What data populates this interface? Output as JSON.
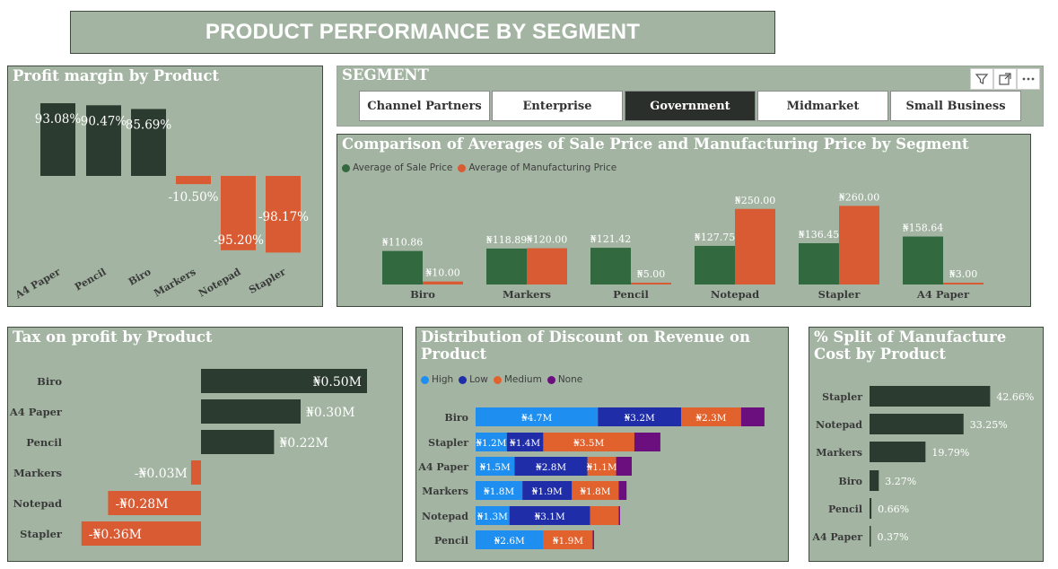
{
  "page_title": "PRODUCT PERFORMANCE BY SEGMENT",
  "colors": {
    "panel_bg": "#a3b5a2",
    "dark": "#2c3b2f",
    "orange": "#d95b34",
    "green": "#33693f",
    "high": "#1e8ff0",
    "low": "#1f2ea8",
    "medium": "#e2622e",
    "none": "#6b0f7f"
  },
  "segment_slicer": {
    "title": "SEGMENT",
    "options": [
      "Channel Partners",
      "Enterprise",
      "Government",
      "Midmarket",
      "Small Business"
    ],
    "selected": "Government",
    "icons": [
      "filter-icon",
      "focus-mode-icon",
      "more-options-icon"
    ]
  },
  "charts": {
    "profit_margin": {
      "title": "Profit margin by Product",
      "chart_data": {
        "type": "bar",
        "categories": [
          "A4 Paper",
          "Pencil",
          "Biro",
          "Markers",
          "Notepad",
          "Stapler"
        ],
        "values": [
          93.08,
          90.47,
          85.69,
          -10.5,
          -95.2,
          -98.17
        ],
        "labels": [
          "93.08%",
          "90.47%",
          "85.69%",
          "-10.50%",
          "-95.20%",
          "-98.17%"
        ]
      }
    },
    "averages": {
      "title": "Comparison of Averages of Sale Price and Manufacturing Price by Segment",
      "chart_data": {
        "type": "bar",
        "categories": [
          "Biro",
          "Markers",
          "Pencil",
          "Notepad",
          "Stapler",
          "A4 Paper"
        ],
        "series": [
          {
            "name": "Average of Sale Price",
            "values": [
              110.86,
              118.89,
              121.42,
              127.75,
              136.45,
              158.64
            ],
            "labels": [
              "₦110.86",
              "₦118.89",
              "₦121.42",
              "₦127.75",
              "₦136.45",
              "₦158.64"
            ]
          },
          {
            "name": "Average of Manufacturing Price",
            "values": [
              10.0,
              120.0,
              5.0,
              250.0,
              260.0,
              3.0
            ],
            "labels": [
              "₦10.00",
              "₦120.00",
              "₦5.00",
              "₦250.00",
              "₦260.00",
              "₦3.00"
            ]
          }
        ]
      }
    },
    "tax": {
      "title": "Tax on profit by Product",
      "chart_data": {
        "type": "bar",
        "categories": [
          "Biro",
          "A4 Paper",
          "Pencil",
          "Markers",
          "Notepad",
          "Stapler"
        ],
        "values": [
          0.5,
          0.3,
          0.22,
          -0.03,
          -0.28,
          -0.36
        ],
        "labels": [
          "₦0.50M",
          "₦0.30M",
          "₦0.22M",
          "-₦0.03M",
          "-₦0.28M",
          "-₦0.36M"
        ]
      }
    },
    "discount": {
      "title": "Distribution of Discount on Revenue on Product",
      "chart_data": {
        "type": "bar",
        "categories": [
          "Biro",
          "Stapler",
          "A4 Paper",
          "Markers",
          "Notepad",
          "Pencil"
        ],
        "series": [
          {
            "name": "High",
            "values": [
              4.7,
              1.2,
              1.5,
              1.8,
              1.3,
              2.6
            ],
            "labels": [
              "₦4.7M",
              "₦1.2M",
              "₦1.5M",
              "₦1.8M",
              "₦1.3M",
              "₦2.6M"
            ]
          },
          {
            "name": "Low",
            "values": [
              3.2,
              1.4,
              2.8,
              1.9,
              3.1,
              0.0
            ],
            "labels": [
              "₦3.2M",
              "₦1.4M",
              "₦2.8M",
              "₦1.9M",
              "₦3.1M",
              ""
            ]
          },
          {
            "name": "Medium",
            "values": [
              2.3,
              3.5,
              1.1,
              1.8,
              1.1,
              1.9
            ],
            "labels": [
              "₦2.3M",
              "₦3.5M",
              "₦1.1M",
              "₦1.8M",
              "",
              "₦1.9M"
            ]
          },
          {
            "name": "None",
            "values": [
              0.9,
              1.0,
              0.6,
              0.3,
              0.05,
              0.05
            ],
            "labels": [
              "",
              "",
              "",
              "",
              "",
              ""
            ]
          }
        ]
      }
    },
    "manufacture_split": {
      "title": "% Split of Manufacture Cost by Product",
      "chart_data": {
        "type": "bar",
        "categories": [
          "Stapler",
          "Notepad",
          "Markers",
          "Biro",
          "Pencil",
          "A4 Paper"
        ],
        "values": [
          42.66,
          33.25,
          19.79,
          3.27,
          0.66,
          0.37
        ],
        "labels": [
          "42.66%",
          "33.25%",
          "19.79%",
          "3.27%",
          "0.66%",
          "0.37%"
        ]
      }
    }
  }
}
